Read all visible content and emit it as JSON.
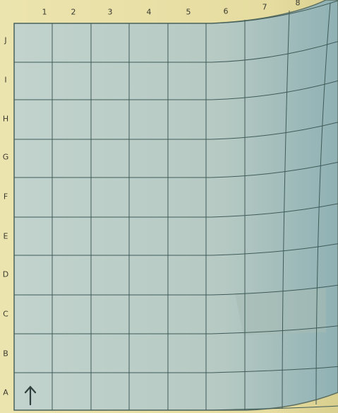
{
  "grid": {
    "columns": [
      "1",
      "2",
      "3",
      "4",
      "5",
      "6",
      "7",
      "8"
    ],
    "rows": [
      "J",
      "I",
      "H",
      "G",
      "F",
      "E",
      "D",
      "C",
      "B",
      "A"
    ]
  },
  "colors": {
    "paper": "#e8dfa6",
    "grid_fill": "#b9ccc6",
    "grid_line": "#3f5b58",
    "label": "#3a3a30",
    "highlight": "#a7bcb4"
  },
  "icons": {
    "north_arrow": "north-arrow-icon"
  }
}
